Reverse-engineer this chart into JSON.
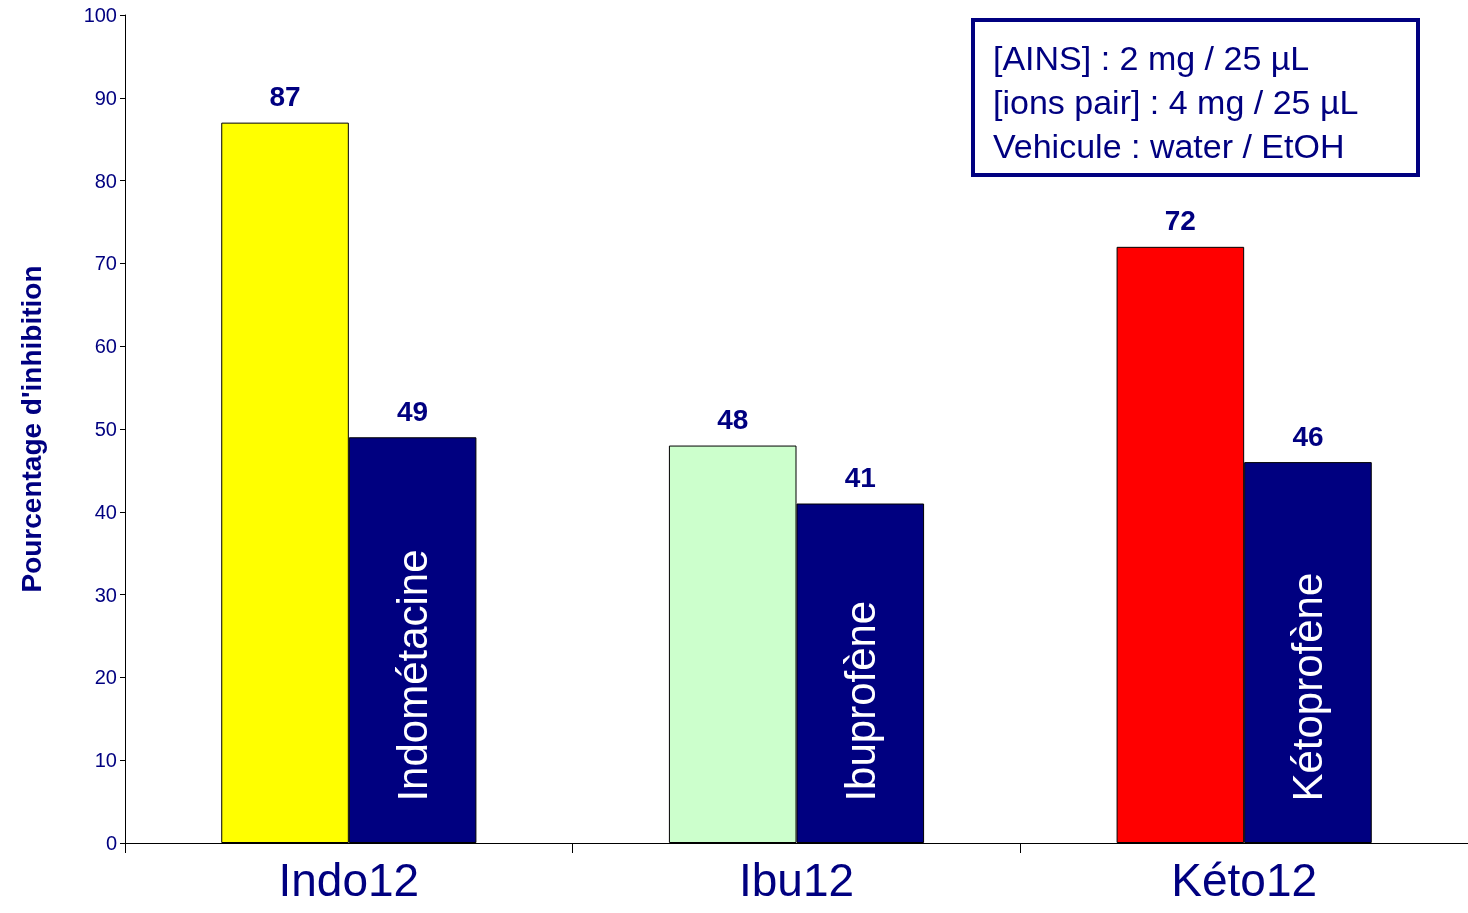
{
  "chart_data": {
    "type": "bar",
    "ylabel": "Pourcentage d'inhibition",
    "categories": [
      "Indo12",
      "Ibu12",
      "Kéto12"
    ],
    "series": [
      {
        "colors": [
          "#ffff00",
          "#ccffcc",
          "#ff0000"
        ],
        "values": [
          87,
          48,
          72
        ]
      },
      {
        "color": "#000080",
        "values": [
          49,
          41,
          46
        ]
      }
    ],
    "ylim": [
      0,
      100
    ],
    "yticks": [
      0,
      10,
      20,
      30,
      40,
      50,
      60,
      70,
      80,
      90,
      100
    ],
    "grid": false,
    "data_labels": true,
    "annotations": [
      {
        "text": "Indométacine",
        "x": "Indo12",
        "y": 5
      },
      {
        "text": "Ibuprofène",
        "x": "Ibu12",
        "y": 5
      },
      {
        "text": "Kétoprofène",
        "x": "Kéto12",
        "y": 5
      },
      "[AINS] : 2 mg / 25 µL\n[ions pair] : 4 mg / 25 µL\nVehicule : water / EtOH"
    ]
  }
}
